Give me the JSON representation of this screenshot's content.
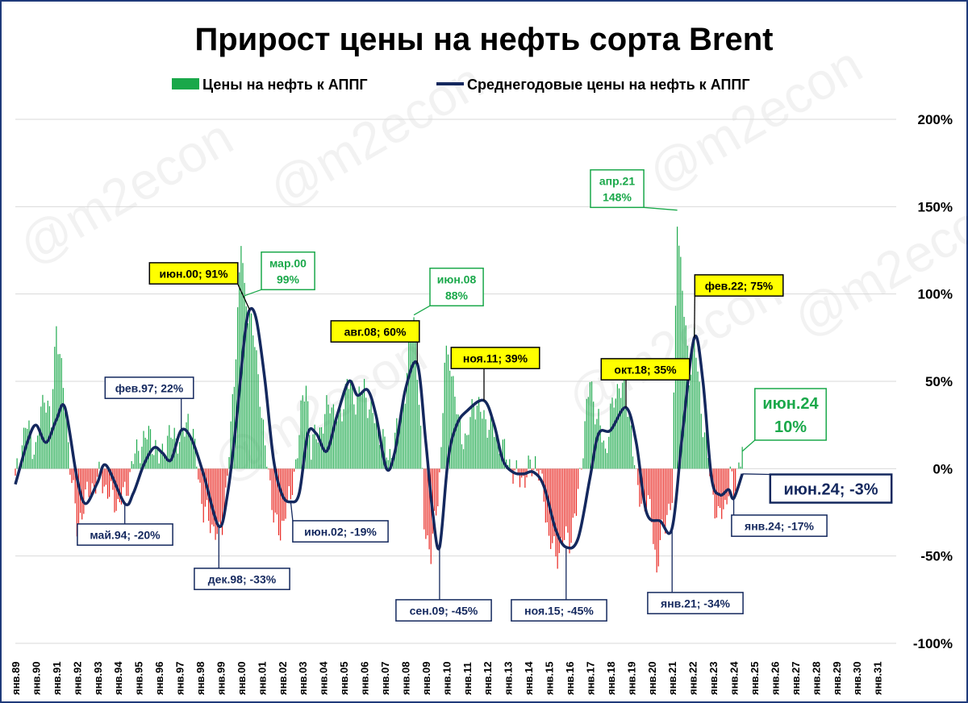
{
  "colors": {
    "positive_bar": "#1aa84a",
    "negative_bar": "#e8201a",
    "avg_line": "#14285e",
    "grid": "#d9d9d9",
    "callout_yellow": "#ffff00",
    "callout_green_text": "#1aa84a",
    "callout_navy": "#14285e",
    "frame": "#1f3a7a"
  },
  "watermark": "@m2econ",
  "chart_data": {
    "type": "bar+line",
    "title": "Прирост цены на нефть сорта Brent",
    "legend": [
      {
        "key": "bars",
        "label": "Цены на нефть к АППГ",
        "color": "#1aa84a",
        "marker": "square"
      },
      {
        "key": "avg",
        "label": "Среднегодовые цены на нефть к АППГ",
        "color": "#14285e",
        "marker": "line"
      }
    ],
    "legend_position": "top-center",
    "y_axis": {
      "position": "right",
      "range": [
        -100,
        200
      ],
      "ticks": [
        200,
        150,
        100,
        50,
        0,
        -50,
        -100
      ],
      "tick_labels": [
        "200%",
        "150%",
        "100%",
        "50%",
        "0%",
        "-50%",
        "-100%"
      ],
      "unit": "%"
    },
    "x_axis": {
      "range": [
        "1989-01",
        "2031-12"
      ],
      "tick_labels": [
        "янв.89",
        "янв.90",
        "янв.91",
        "янв.92",
        "янв.93",
        "янв.94",
        "янв.95",
        "янв.96",
        "янв.97",
        "янв.98",
        "янв.99",
        "янв.00",
        "янв.01",
        "янв.02",
        "янв.03",
        "янв.04",
        "янв.05",
        "янв.06",
        "янв.07",
        "янв.08",
        "янв.09",
        "янв.10",
        "янв.11",
        "янв.12",
        "янв.13",
        "янв.14",
        "янв.15",
        "янв.16",
        "янв.17",
        "янв.18",
        "янв.19",
        "янв.20",
        "янв.21",
        "янв.22",
        "янв.23",
        "янв.24",
        "янв.25",
        "янв.26",
        "янв.27",
        "янв.28",
        "янв.29",
        "янв.30",
        "янв.31"
      ]
    },
    "grid": true,
    "series": [
      {
        "name": "Цены на нефть к АППГ",
        "type": "bar",
        "interpolation": "monthly",
        "x": [
          "1989-01",
          "1989-07",
          "1990-01",
          "1990-06",
          "1990-10",
          "1991-01",
          "1991-04",
          "1991-08",
          "1992-01",
          "1992-05",
          "1992-10",
          "1993-03",
          "1993-08",
          "1994-01",
          "1994-05",
          "1994-10",
          "1995-03",
          "1995-08",
          "1996-01",
          "1996-05",
          "1996-10",
          "1997-02",
          "1997-06",
          "1997-11",
          "1998-03",
          "1998-07",
          "1998-12",
          "1999-03",
          "1999-07",
          "1999-10",
          "2000-01",
          "2000-03",
          "2000-06",
          "2000-09",
          "2000-12",
          "2001-03",
          "2001-06",
          "2001-09",
          "2001-12",
          "2002-03",
          "2002-06",
          "2002-09",
          "2002-12",
          "2003-03",
          "2003-06",
          "2003-09",
          "2004-01",
          "2004-05",
          "2004-10",
          "2005-03",
          "2005-08",
          "2006-01",
          "2006-06",
          "2006-11",
          "2007-03",
          "2007-08",
          "2008-01",
          "2008-04",
          "2008-06",
          "2008-09",
          "2008-12",
          "2009-04",
          "2009-07",
          "2009-10",
          "2009-12",
          "2010-03",
          "2010-08",
          "2011-01",
          "2011-05",
          "2011-10",
          "2012-03",
          "2012-08",
          "2013-01",
          "2013-06",
          "2013-11",
          "2014-05",
          "2014-10",
          "2015-01",
          "2015-05",
          "2015-10",
          "2016-01",
          "2016-05",
          "2016-10",
          "2017-01",
          "2017-05",
          "2017-10",
          "2018-01",
          "2018-06",
          "2018-10",
          "2019-01",
          "2019-04",
          "2019-08",
          "2020-01",
          "2020-04",
          "2020-08",
          "2021-01",
          "2021-04",
          "2021-07",
          "2021-11",
          "2022-02",
          "2022-06",
          "2022-10",
          "2023-01",
          "2023-04",
          "2023-08",
          "2023-11",
          "2024-01",
          "2024-04",
          "2024-06"
        ],
        "values": [
          -8,
          25,
          10,
          45,
          25,
          85,
          55,
          15,
          -35,
          -20,
          -10,
          -5,
          -15,
          -20,
          -15,
          5,
          15,
          20,
          5,
          15,
          20,
          15,
          30,
          5,
          -25,
          -30,
          -40,
          -25,
          20,
          70,
          130,
          99,
          90,
          70,
          45,
          10,
          -10,
          -30,
          -40,
          -20,
          -19,
          5,
          30,
          50,
          10,
          20,
          25,
          40,
          25,
          50,
          40,
          45,
          30,
          20,
          5,
          20,
          45,
          75,
          88,
          40,
          -30,
          -50,
          -25,
          10,
          60,
          65,
          25,
          15,
          40,
          30,
          25,
          15,
          5,
          -5,
          -5,
          5,
          -15,
          -40,
          -50,
          -40,
          -40,
          -25,
          25,
          50,
          30,
          10,
          30,
          50,
          40,
          25,
          -10,
          -20,
          -25,
          -60,
          -30,
          -20,
          148,
          100,
          55,
          75,
          35,
          5,
          -15,
          -30,
          -20,
          -5,
          -15,
          5,
          10
        ]
      },
      {
        "name": "Среднегодовые цены на нефть к АППГ",
        "type": "line",
        "interpolation": "spline",
        "x": [
          "1989-01",
          "1989-08",
          "1990-01",
          "1990-07",
          "1991-01",
          "1991-06",
          "1992-01",
          "1992-06",
          "1993-01",
          "1993-06",
          "1994-05",
          "1994-10",
          "1995-04",
          "1995-10",
          "1996-03",
          "1996-08",
          "1997-02",
          "1997-08",
          "1998-03",
          "1998-12",
          "1999-05",
          "1999-10",
          "2000-03",
          "2000-06",
          "2000-10",
          "2001-03",
          "2001-08",
          "2002-01",
          "2002-06",
          "2002-11",
          "2003-04",
          "2003-09",
          "2004-03",
          "2004-09",
          "2005-04",
          "2005-09",
          "2006-03",
          "2006-08",
          "2007-02",
          "2007-07",
          "2008-01",
          "2008-08",
          "2009-01",
          "2009-05",
          "2009-09",
          "2010-02",
          "2010-07",
          "2011-01",
          "2011-11",
          "2012-05",
          "2012-10",
          "2013-04",
          "2013-10",
          "2014-04",
          "2014-10",
          "2015-05",
          "2015-11",
          "2016-06",
          "2017-01",
          "2017-06",
          "2018-01",
          "2018-10",
          "2019-04",
          "2019-10",
          "2020-06",
          "2021-01",
          "2021-07",
          "2022-02",
          "2022-07",
          "2022-12",
          "2023-05",
          "2023-10",
          "2024-01",
          "2024-06"
        ],
        "values": [
          -9,
          15,
          25,
          15,
          28,
          35,
          -5,
          -20,
          -8,
          2,
          -20,
          -14,
          2,
          12,
          9,
          5,
          22,
          17,
          -3,
          -33,
          -15,
          25,
          75,
          91,
          85,
          50,
          5,
          -15,
          -19,
          -14,
          20,
          20,
          10,
          30,
          50,
          42,
          45,
          30,
          0,
          10,
          45,
          60,
          15,
          -25,
          -45,
          5,
          25,
          33,
          39,
          25,
          5,
          -2,
          -3,
          -2,
          -10,
          -35,
          -45,
          -40,
          -5,
          20,
          22,
          35,
          15,
          -25,
          -30,
          -34,
          20,
          75,
          50,
          -5,
          -15,
          -12,
          -17,
          -3
        ]
      }
    ],
    "annotations": [
      {
        "series": "avg",
        "x": "1994-05",
        "y": -20,
        "text": "май.94; -20%",
        "style": "navy"
      },
      {
        "series": "avg",
        "x": "1997-02",
        "y": 22,
        "text": "фев.97; 22%",
        "style": "navy"
      },
      {
        "series": "avg",
        "x": "1998-12",
        "y": -33,
        "text": "дек.98; -33%",
        "style": "navy"
      },
      {
        "series": "avg",
        "x": "2000-06",
        "y": 91,
        "text": "июн.00; 91%",
        "style": "yellow"
      },
      {
        "series": "bars",
        "x": "2000-03",
        "y": 99,
        "text": "мар.00\n99%",
        "style": "green"
      },
      {
        "series": "avg",
        "x": "2002-06",
        "y": -19,
        "text": "июн.02; -19%",
        "style": "navy"
      },
      {
        "series": "avg",
        "x": "2008-08",
        "y": 60,
        "text": "авг.08; 60%",
        "style": "yellow"
      },
      {
        "series": "bars",
        "x": "2008-06",
        "y": 88,
        "text": "июн.08\n88%",
        "style": "green"
      },
      {
        "series": "avg",
        "x": "2009-09",
        "y": -45,
        "text": "сен.09; -45%",
        "style": "navy"
      },
      {
        "series": "avg",
        "x": "2011-11",
        "y": 39,
        "text": "ноя.11; 39%",
        "style": "yellow"
      },
      {
        "series": "avg",
        "x": "2015-11",
        "y": -45,
        "text": "ноя.15; -45%",
        "style": "navy"
      },
      {
        "series": "avg",
        "x": "2018-10",
        "y": 35,
        "text": "окт.18; 35%",
        "style": "yellow"
      },
      {
        "series": "bars",
        "x": "2021-04",
        "y": 148,
        "text": "апр.21\n148%",
        "style": "green"
      },
      {
        "series": "avg",
        "x": "2021-01",
        "y": -34,
        "text": "янв.21; -34%",
        "style": "navy"
      },
      {
        "series": "avg",
        "x": "2022-02",
        "y": 75,
        "text": "фев.22; 75%",
        "style": "yellow"
      },
      {
        "series": "bars",
        "x": "2024-06",
        "y": 10,
        "text": "июн.24\n10%",
        "style": "green-big"
      },
      {
        "series": "avg",
        "x": "2024-06",
        "y": -3,
        "text": "июн.24; -3%",
        "style": "navy-big"
      },
      {
        "series": "avg",
        "x": "2024-01",
        "y": -17,
        "text": "янв.24; -17%",
        "style": "navy"
      }
    ]
  }
}
